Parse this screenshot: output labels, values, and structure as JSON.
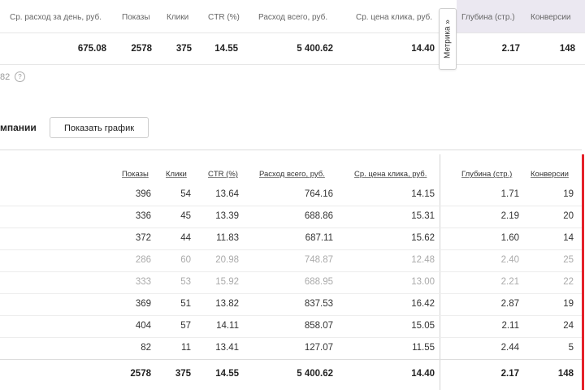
{
  "summary": {
    "headers": [
      "Ср. расход за день, руб.",
      "Показы",
      "Клики",
      "CTR (%)",
      "Расход всего, руб.",
      "Ср. цена клика, руб.",
      "Глубина (стр.)",
      "Конверсии"
    ],
    "values": [
      "675.08",
      "2578",
      "375",
      "14.55",
      "5 400.62",
      "14.40",
      "2.17",
      "148"
    ],
    "metrika_tab": "Метрика »",
    "count_text": "82",
    "help_icon": "?"
  },
  "section": {
    "title": "мпании",
    "show_graph_button": "Показать график"
  },
  "table": {
    "headers": [
      "Показы",
      "Клики",
      "CTR (%)",
      "Расход всего, руб.",
      "Ср. цена клика, руб.",
      "Глубина (стр.)",
      "Конверсии"
    ],
    "rows": [
      {
        "muted": false,
        "cells": [
          "396",
          "54",
          "13.64",
          "764.16",
          "14.15",
          "1.71",
          "19"
        ]
      },
      {
        "muted": false,
        "cells": [
          "336",
          "45",
          "13.39",
          "688.86",
          "15.31",
          "2.19",
          "20"
        ]
      },
      {
        "muted": false,
        "cells": [
          "372",
          "44",
          "11.83",
          "687.11",
          "15.62",
          "1.60",
          "14"
        ]
      },
      {
        "muted": true,
        "cells": [
          "286",
          "60",
          "20.98",
          "748.87",
          "12.48",
          "2.40",
          "25"
        ]
      },
      {
        "muted": true,
        "cells": [
          "333",
          "53",
          "15.92",
          "688.95",
          "13.00",
          "2.21",
          "22"
        ]
      },
      {
        "muted": false,
        "cells": [
          "369",
          "51",
          "13.82",
          "837.53",
          "16.42",
          "2.87",
          "19"
        ]
      },
      {
        "muted": false,
        "cells": [
          "404",
          "57",
          "14.11",
          "858.07",
          "15.05",
          "2.11",
          "24"
        ]
      },
      {
        "muted": false,
        "cells": [
          "82",
          "11",
          "13.41",
          "127.07",
          "11.55",
          "2.44",
          "5"
        ]
      }
    ],
    "total": [
      "2578",
      "375",
      "14.55",
      "5 400.62",
      "14.40",
      "2.17",
      "148"
    ]
  },
  "colors": {
    "accent_red": "#e5212a",
    "metrika_bg": "#ebe8f1",
    "muted_text": "#aaaaaa"
  }
}
